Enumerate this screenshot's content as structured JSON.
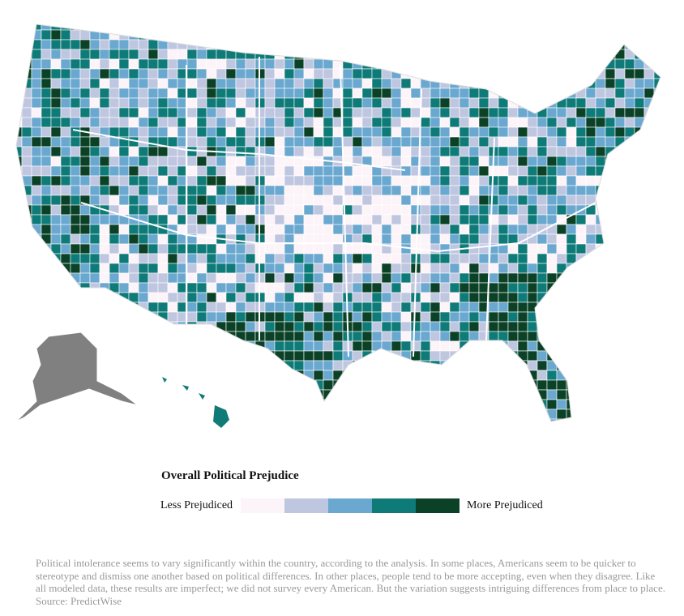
{
  "legend": {
    "title": "Overall Political Prejudice",
    "low_label": "Less Prejudiced",
    "high_label": "More Prejudiced",
    "colors": [
      "#fcf4f8",
      "#bfc6e0",
      "#6aa8d0",
      "#0e7b78",
      "#0b4227"
    ]
  },
  "caption": "Political intolerance seems to vary significantly within the country, according to the analysis. In some places, Americans seem to be quicker to stereotype and dismiss one another based on political differences. In other places, people tend to be more accepting, even when they disagree. Like all modeled data, these results are imperfect; we did not survey every American. But the variation suggests intriguing differences from place to place. Source: PredictWise"
}
